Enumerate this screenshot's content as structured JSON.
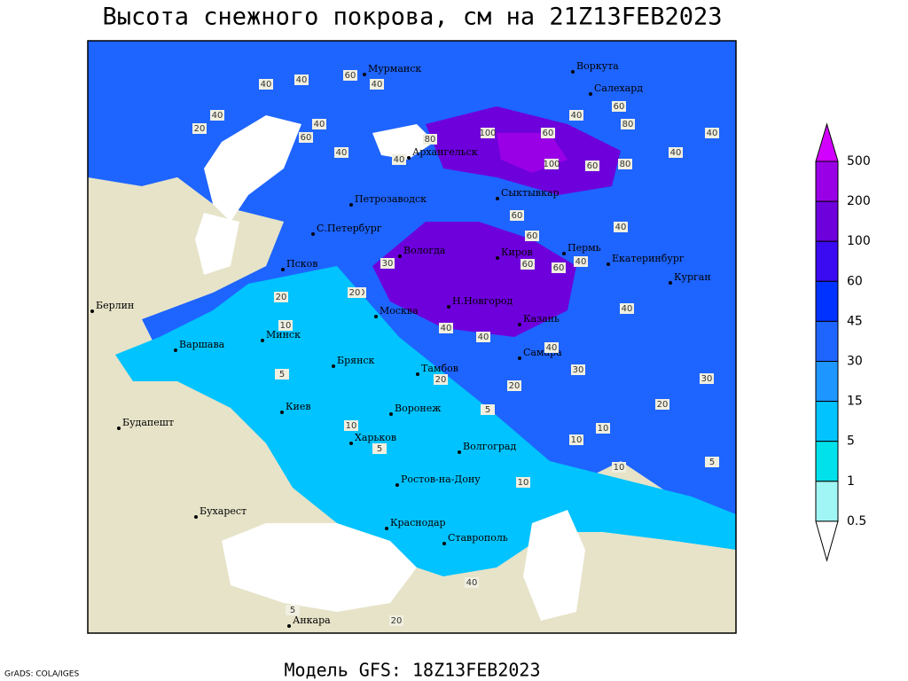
{
  "title": "Высота снежного покрова, см на 21Z13FEB2023",
  "footer": {
    "model": "Модель GFS: 18Z13FEB2023",
    "credit": "GrADS: COLA/IGES"
  },
  "cities": [
    "Мурманск",
    "Воркута",
    "Салехард",
    "Архангельск",
    "Петрозаводск",
    "Сыктывкар",
    "С.Петербург",
    "Вологда",
    "Киров",
    "Пермь",
    "Екатеринбург",
    "Курган",
    "Псков",
    "Берлин",
    "Н.Новгород",
    "Москва",
    "Казань",
    "Минск",
    "Варшава",
    "Самара",
    "Брянск",
    "Тамбов",
    "Киев",
    "Воронеж",
    "Будапешт",
    "Харьков",
    "Волгоград",
    "Ростов-на-Дону",
    "Бухарест",
    "Краснодар",
    "Ставрополь",
    "Анкара"
  ],
  "contour_labels": [
    40,
    40,
    60,
    40,
    40,
    20,
    40,
    40,
    60,
    80,
    40,
    40,
    100,
    60,
    100,
    60,
    80,
    40,
    60,
    80,
    60,
    40,
    40,
    40,
    60,
    60,
    40,
    20,
    20,
    10,
    40,
    60,
    40,
    40,
    30,
    30,
    40,
    20,
    20,
    30,
    20,
    10,
    10,
    10,
    5,
    5,
    5,
    10,
    10,
    5,
    20,
    40,
    20,
    5
  ],
  "legend": {
    "levels": [
      500,
      200,
      100,
      60,
      45,
      30,
      15,
      5,
      1,
      0.5
    ],
    "colors": [
      "#d200ff",
      "#9a00e6",
      "#6e00dc",
      "#3a0af0",
      "#0032ff",
      "#1e64ff",
      "#1e96ff",
      "#00c3ff",
      "#00e1eb",
      "#a0f5f5",
      "#ffffff"
    ]
  }
}
